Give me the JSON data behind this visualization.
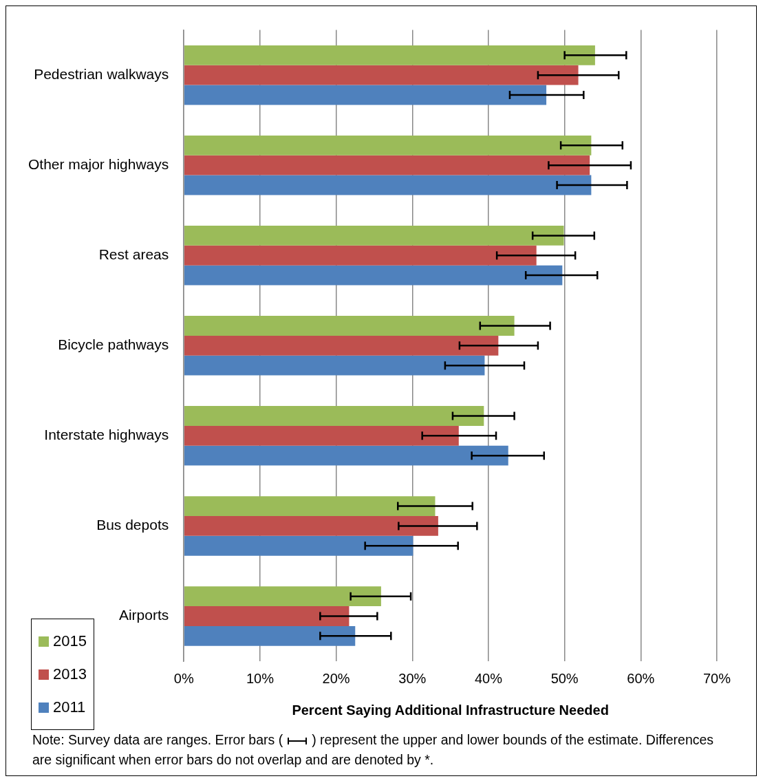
{
  "chart_data": {
    "type": "bar",
    "orientation": "horizontal",
    "xlabel": "Percent Saying Additional Infrastructure Needed",
    "categories": [
      "Pedestrian walkways",
      "Other major highways",
      "Rest areas",
      "Bicycle pathways",
      "Interstate highways",
      "Bus depots",
      "Airports"
    ],
    "series": [
      {
        "name": "2015",
        "color": "#9bbb59",
        "values": [
          54.0,
          53.5,
          49.9,
          43.4,
          39.4,
          33.0,
          25.9
        ],
        "errors": [
          [
            50.0,
            58.1
          ],
          [
            49.5,
            57.6
          ],
          [
            45.8,
            53.9
          ],
          [
            38.9,
            48.1
          ],
          [
            35.3,
            43.4
          ],
          [
            28.1,
            37.9
          ],
          [
            21.9,
            29.8
          ]
        ]
      },
      {
        "name": "2013",
        "color": "#c0504d",
        "values": [
          51.8,
          53.3,
          46.3,
          41.3,
          36.1,
          33.4,
          21.7
        ],
        "errors": [
          [
            46.5,
            57.1
          ],
          [
            47.9,
            58.7
          ],
          [
            41.1,
            51.4
          ],
          [
            36.2,
            46.5
          ],
          [
            31.3,
            41.0
          ],
          [
            28.2,
            38.5
          ],
          [
            17.9,
            25.4
          ]
        ]
      },
      {
        "name": "2011",
        "color": "#4f81bd",
        "values": [
          47.6,
          53.5,
          49.7,
          39.5,
          42.6,
          30.1,
          22.5
        ],
        "errors": [
          [
            42.8,
            52.5
          ],
          [
            49.0,
            58.2
          ],
          [
            44.9,
            54.3
          ],
          [
            34.3,
            44.7
          ],
          [
            37.8,
            47.3
          ],
          [
            23.8,
            36.0
          ],
          [
            17.9,
            27.2
          ]
        ]
      }
    ],
    "xlim": [
      0,
      70
    ],
    "xticks": [
      {
        "value": 0,
        "label": "0%"
      },
      {
        "value": 10,
        "label": "10%"
      },
      {
        "value": 20,
        "label": "20%"
      },
      {
        "value": 30,
        "label": "30%"
      },
      {
        "value": 40,
        "label": "40%"
      },
      {
        "value": 50,
        "label": "50%"
      },
      {
        "value": 60,
        "label": "60%"
      },
      {
        "value": 70,
        "label": "70%"
      }
    ],
    "grid": "x",
    "legend": "bottom left",
    "annotations": [
      "Note:  Survey data are ranges.  Error bars (",
      ") represent the upper and lower bounds of the estimate.  Differences are significant when error bars do not overlap and are denoted by *."
    ]
  }
}
